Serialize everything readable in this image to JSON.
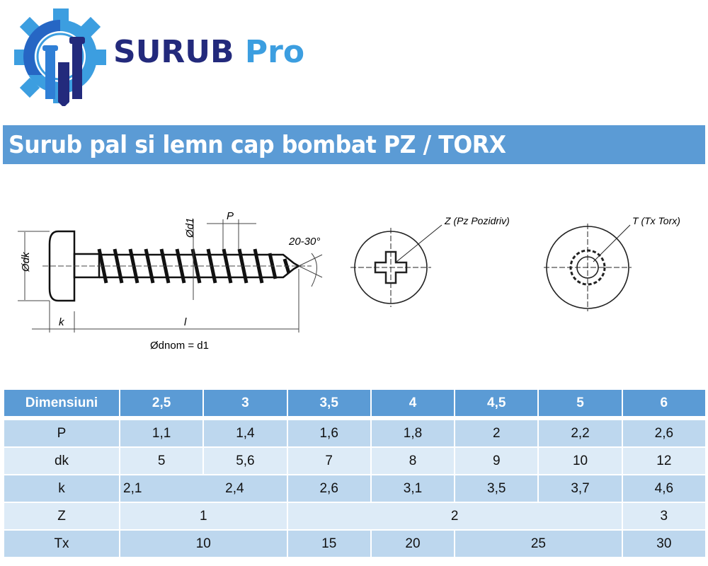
{
  "logo": {
    "brand_primary": "SURUB",
    "brand_secondary": "Pro",
    "colors": {
      "navy": "#232a7c",
      "blue": "#3c9ee0"
    },
    "icon": "gear-screws-icon"
  },
  "title": "Surub pal si lemn cap bombat PZ / TORX",
  "drawing": {
    "labels": {
      "dk": "Ødk",
      "d1": "Ød1",
      "P": "P",
      "angle": "20-30°",
      "k": "k",
      "l": "l",
      "dnom": "Ødnom = d1"
    },
    "pozidriv_label": "Z (Pz Pozidriv)",
    "torx_label": "T (Tx Torx)"
  },
  "table": {
    "headers": [
      "Dimensiuni",
      "2,5",
      "3",
      "3,5",
      "4",
      "4,5",
      "5",
      "6"
    ],
    "P": [
      "P",
      "1,1",
      "1,4",
      "1,6",
      "1,8",
      "2",
      "2,2",
      "2,6"
    ],
    "dk": [
      "dk",
      "5",
      "5,6",
      "7",
      "8",
      "9",
      "10",
      "12"
    ],
    "k": [
      "k",
      "2,1",
      "2,4",
      "2,6",
      "3,1",
      "3,5",
      "3,7",
      "4,6"
    ],
    "Z": [
      "Z",
      "1",
      "2",
      "3"
    ],
    "Tx": [
      "Tx",
      "10",
      "15",
      "20",
      "25",
      "30"
    ],
    "colors": {
      "header": "#5b9bd5",
      "row_dark": "#bdd7ee",
      "row_light": "#ddebf7"
    }
  }
}
